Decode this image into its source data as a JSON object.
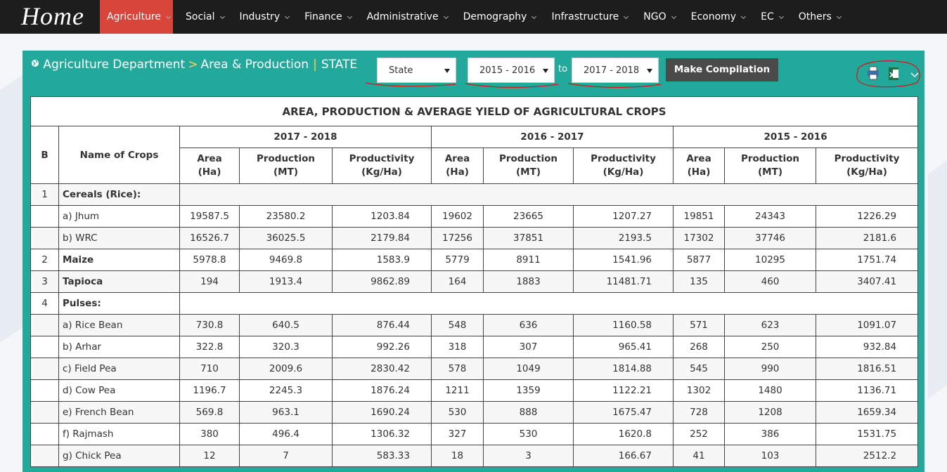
{
  "nav": {
    "logo": "Home",
    "items": [
      "Agriculture",
      "Social",
      "Industry",
      "Finance",
      "Administrative",
      "Demography",
      "Infrastructure",
      "NGO",
      "Economy",
      "EC",
      "Others"
    ]
  },
  "breadcrumb": {
    "department": "Agriculture Department",
    "separator1": ">",
    "section": "Area & Production",
    "separator2": "|",
    "level": "STATE"
  },
  "filters": {
    "level": "State",
    "from": "2015 - 2016",
    "to_label": "to",
    "to": "2017 - 2018",
    "button": "Make Compilation"
  },
  "table": {
    "title": "AREA, PRODUCTION & AVERAGE YIELD OF AGRICULTURAL CROPS",
    "col_no": "B",
    "col_name": "Name of Crops",
    "years": [
      "2017 - 2018",
      "2016 - 2017",
      "2015 - 2016"
    ],
    "subheaders": [
      "Area\n(Ha)",
      "Production\n(MT)",
      "Productivity\n(Kg/Ha)"
    ],
    "rows": [
      {
        "no": 1,
        "name": "Cereals (Rice):"
      },
      {
        "name": "a) Jhum",
        "values": [
          19587.5,
          23580.2,
          1203.84,
          19602,
          23665,
          1207.27,
          19851,
          24343,
          1226.29
        ]
      },
      {
        "name": "b) WRC",
        "values": [
          16526.7,
          36025.5,
          2179.84,
          17256,
          37851,
          2193.5,
          17302,
          37746,
          2181.6
        ]
      },
      {
        "no": 2,
        "name": "Maize",
        "values": [
          5978.8,
          9469.8,
          1583.9,
          5779,
          8911,
          1541.96,
          5877,
          10295,
          1751.74
        ]
      },
      {
        "no": 3,
        "name": "Tapioca",
        "values": [
          194,
          1913.4,
          9862.89,
          164,
          1883,
          11481.71,
          135,
          460,
          3407.41
        ]
      },
      {
        "no": 4,
        "name": "Pulses:"
      },
      {
        "name": "a) Rice Bean",
        "values": [
          730.8,
          640.5,
          876.44,
          548,
          636,
          1160.58,
          571,
          623,
          1091.07
        ]
      },
      {
        "name": "b) Arhar",
        "values": [
          322.8,
          320.3,
          992.26,
          318,
          307,
          965.41,
          268,
          250,
          932.84
        ]
      },
      {
        "name": "c) Field Pea",
        "values": [
          710,
          2009.6,
          2830.42,
          578,
          1049,
          1814.88,
          545,
          990,
          1816.51
        ]
      },
      {
        "name": "d) Cow Pea",
        "values": [
          1196.7,
          2245.3,
          1876.24,
          1211,
          1359,
          1122.21,
          1302,
          1480,
          1136.71
        ]
      },
      {
        "name": "e) French Bean",
        "values": [
          569.8,
          963.1,
          1690.24,
          530,
          888,
          1675.47,
          728,
          1208,
          1659.34
        ]
      },
      {
        "name": "f) Rajmash",
        "values": [
          380,
          496.4,
          1306.32,
          327,
          530,
          1620.8,
          252,
          386,
          1531.75
        ]
      },
      {
        "name": "g) Chick Pea",
        "values": [
          12,
          7,
          583.33,
          18,
          3,
          166.67,
          41,
          103,
          2512.2
        ]
      }
    ]
  }
}
